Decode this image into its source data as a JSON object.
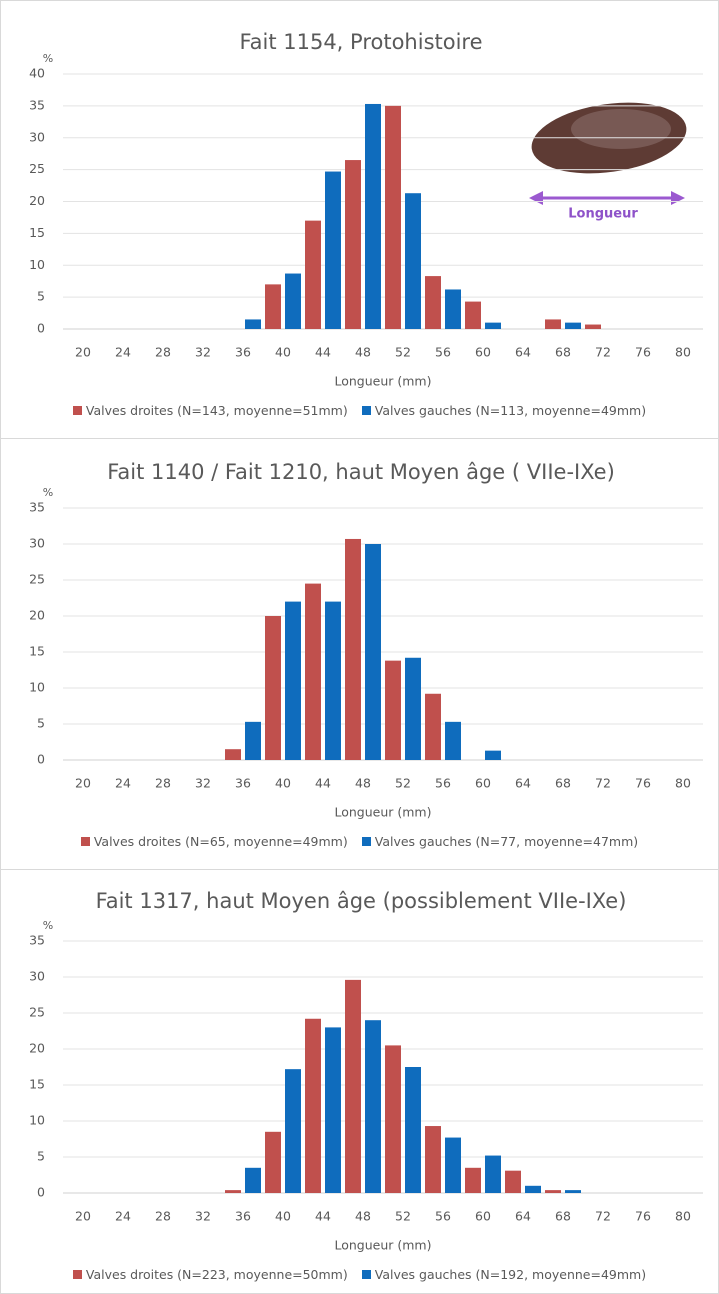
{
  "chart_data": [
    {
      "type": "bar",
      "title": "Fait 1154, Protohistoire",
      "ylabel": "%",
      "xlabel": "Longueur (mm)",
      "annotation": "Longueur",
      "categories": [
        "20",
        "24",
        "28",
        "32",
        "36",
        "40",
        "44",
        "48",
        "52",
        "56",
        "60",
        "64",
        "68",
        "72",
        "76",
        "80"
      ],
      "series": [
        {
          "name": "Valves droites (N=143, moyenne=51mm)",
          "color": "#c0504d",
          "values": [
            0,
            0,
            0,
            0,
            0,
            7,
            17,
            26.5,
            35,
            8.3,
            4.3,
            0,
            1.5,
            0.7,
            0,
            0
          ]
        },
        {
          "name": "Valves gauches (N=113, moyenne=49mm)",
          "color": "#0f6cbd",
          "values": [
            0,
            0,
            0,
            0,
            1.5,
            8.7,
            24.7,
            35.3,
            21.3,
            6.2,
            1,
            0,
            1,
            0,
            0,
            0
          ]
        }
      ],
      "ylim": [
        0,
        40
      ],
      "yticks": [
        0,
        5,
        10,
        15,
        20,
        25,
        30,
        35,
        40
      ],
      "grid": true
    },
    {
      "type": "bar",
      "title": "Fait 1140 / Fait 1210, haut Moyen âge ( VIIe-IXe)",
      "ylabel": "%",
      "xlabel": "Longueur (mm)",
      "categories": [
        "20",
        "24",
        "28",
        "32",
        "36",
        "40",
        "44",
        "48",
        "52",
        "56",
        "60",
        "64",
        "68",
        "72",
        "76",
        "80"
      ],
      "series": [
        {
          "name": "Valves droites (N=65, moyenne=49mm)",
          "color": "#c0504d",
          "values": [
            0,
            0,
            0,
            0,
            1.5,
            20,
            24.5,
            30.7,
            13.8,
            9.2,
            0,
            0,
            0,
            0,
            0,
            0
          ]
        },
        {
          "name": "Valves gauches (N=77, moyenne=47mm)",
          "color": "#0f6cbd",
          "values": [
            0,
            0,
            0,
            0,
            5.3,
            22,
            22,
            30,
            14.2,
            5.3,
            1.3,
            0,
            0,
            0,
            0,
            0
          ]
        }
      ],
      "ylim": [
        0,
        35
      ],
      "yticks": [
        0,
        5,
        10,
        15,
        20,
        25,
        30,
        35
      ],
      "grid": true
    },
    {
      "type": "bar",
      "title": "Fait 1317, haut Moyen âge (possiblement VIIe-IXe)",
      "ylabel": "%",
      "xlabel": "Longueur (mm)",
      "categories": [
        "20",
        "24",
        "28",
        "32",
        "36",
        "40",
        "44",
        "48",
        "52",
        "56",
        "60",
        "64",
        "68",
        "72",
        "76",
        "80"
      ],
      "series": [
        {
          "name": "Valves droites (N=223, moyenne=50mm)",
          "color": "#c0504d",
          "values": [
            0,
            0,
            0,
            0,
            0.4,
            8.5,
            24.2,
            29.6,
            20.5,
            9.3,
            3.5,
            3.1,
            0.4,
            0,
            0,
            0
          ]
        },
        {
          "name": "Valves gauches (N=192, moyenne=49mm)",
          "color": "#0f6cbd",
          "values": [
            0,
            0,
            0,
            0,
            3.5,
            17.2,
            23,
            24,
            17.5,
            7.7,
            5.2,
            1,
            0.4,
            0,
            0,
            0
          ]
        }
      ],
      "ylim": [
        0,
        35
      ],
      "yticks": [
        0,
        5,
        10,
        15,
        20,
        25,
        30,
        35
      ],
      "grid": true
    }
  ]
}
